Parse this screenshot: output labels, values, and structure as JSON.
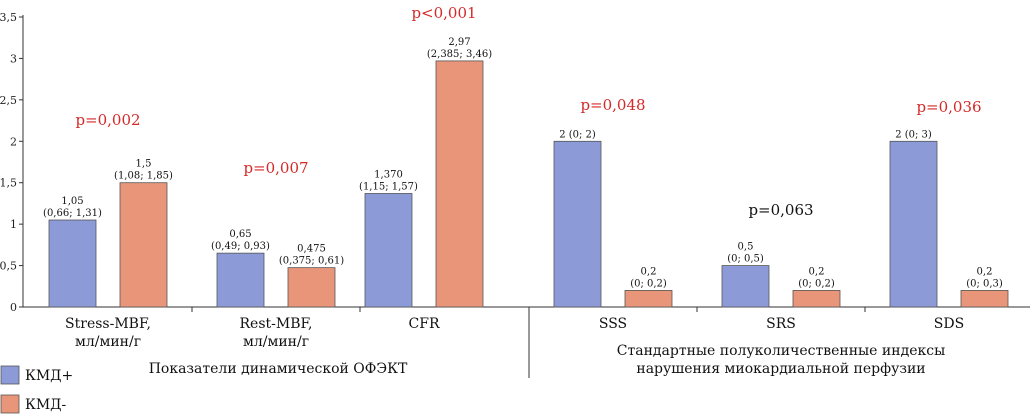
{
  "colors": {
    "kmd_plus": "#8c9bd8",
    "kmd_minus": "#e8957a",
    "significant": "#d42a2a",
    "nonsignificant": "#111111",
    "axis": "#333333"
  },
  "chart_data": {
    "type": "bar",
    "title": "",
    "ylim": [
      0,
      3.5
    ],
    "yticks": [
      "0",
      "0,5",
      "1",
      "1,5",
      "2",
      "2,5",
      "3",
      "3,5"
    ],
    "ytick_values": [
      0,
      0.5,
      1,
      1.5,
      2,
      2.5,
      3,
      3.5
    ],
    "grid": false,
    "legend": "bottom-left",
    "categories": [
      [
        "Stress-MBF,",
        "мл/мин/г"
      ],
      [
        "Rest-MBF,",
        "мл/мин/г"
      ],
      [
        "CFR"
      ],
      [
        "SSS"
      ],
      [
        "SRS"
      ],
      [
        "SDS"
      ]
    ],
    "groups": [
      {
        "label": "Показатели динамической ОФЭКТ"
      },
      {
        "label_lines": [
          "Стандартные полуколичественные индексы",
          "нарушения миокардиальной перфузии"
        ]
      }
    ],
    "series": [
      {
        "name": "КМД+",
        "values": [
          1.05,
          0.65,
          1.37,
          2,
          0.5,
          2
        ],
        "labels": [
          [
            "1,05",
            "(0,66; 1,31)"
          ],
          [
            "0,65",
            "(0,49; 0,93)"
          ],
          [
            "1,370",
            "(1,15; 1,57)"
          ],
          [
            "2 (0; 2)"
          ],
          [
            "0,5",
            "(0; 0,5)"
          ],
          [
            "2 (0; 3)"
          ]
        ]
      },
      {
        "name": "КМД-",
        "values": [
          1.5,
          0.475,
          2.97,
          0.2,
          0.2,
          0.2
        ],
        "labels": [
          [
            "1,5",
            "(1,08; 1,85)"
          ],
          [
            "0,475",
            "(0,375; 0,61)"
          ],
          [
            "2,97",
            "(2,385; 3,46)"
          ],
          [
            "0,2",
            "(0; 0,2)"
          ],
          [
            "0,2",
            "(0; 0,2)"
          ],
          [
            "0,2",
            "(0; 0,3)"
          ]
        ]
      }
    ],
    "pvalues": [
      {
        "text": "p=0,002",
        "significant": true
      },
      {
        "text": "p=0,007",
        "significant": true
      },
      {
        "text": "p<0,001",
        "significant": true
      },
      {
        "text": "p=0,048",
        "significant": true
      },
      {
        "text": "p=0,063",
        "significant": false
      },
      {
        "text": "p=0,036",
        "significant": true
      }
    ]
  }
}
